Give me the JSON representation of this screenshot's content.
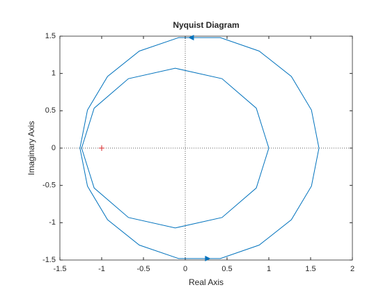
{
  "chart_data": {
    "type": "line",
    "title": "Nyquist Diagram",
    "x_label": "Real Axis",
    "y_label": "Imaginary Axis",
    "series": [
      {
        "color": "#0072bd",
        "x": [
          1.6,
          1.51,
          1.27,
          0.885,
          0.42,
          -0.08,
          -0.55,
          -0.93,
          -1.17,
          -1.26,
          -1.17,
          -0.93,
          -0.55,
          -0.08,
          0.42,
          0.885,
          1.27,
          1.51,
          1.6
        ],
        "values": [
          0,
          0.51,
          0.96,
          1.3,
          1.48,
          1.48,
          1.3,
          0.96,
          0.51,
          0,
          -0.51,
          -0.96,
          -1.3,
          -1.48,
          -1.48,
          -1.3,
          -0.96,
          -0.51,
          0
        ]
      },
      {
        "color": "#0072bd",
        "x": [
          -1.24,
          -1.09,
          -0.68,
          -0.12,
          0.44,
          0.85,
          1.0,
          0.85,
          0.44,
          -0.12,
          -0.68,
          -1.09,
          -1.24
        ],
        "values": [
          0,
          0.535,
          0.93,
          1.07,
          0.93,
          0.535,
          0,
          -0.535,
          -0.93,
          -1.07,
          -0.93,
          -0.535,
          0
        ]
      }
    ],
    "critical_point": {
      "x": -1,
      "y": 0,
      "color": "#d62728"
    },
    "xlim": [
      -1.5,
      2
    ],
    "xticks": [
      -1.5,
      -1,
      -0.5,
      0,
      0.5,
      1,
      1.5,
      2
    ],
    "ylim": [
      -1.5,
      1.5
    ],
    "yticks": [
      -1.5,
      -1,
      -0.5,
      0,
      0.5,
      1,
      1.5
    ],
    "zero_lines": true
  }
}
